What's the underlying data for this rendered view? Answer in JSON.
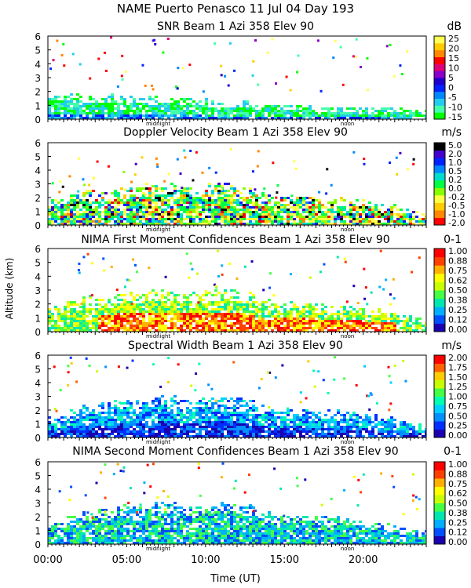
{
  "figure": {
    "title": "NAME Puerto Penasco  11 Jul 04 Day 193",
    "ylabel": "Altitude (km)",
    "xlabel": "Time (UT)",
    "time_ticks": [
      "00:00",
      "05:00",
      "10:00",
      "15:00",
      "20:00"
    ],
    "midnight_label": "midnight",
    "noon_label": "noon"
  },
  "chart_data": [
    {
      "type": "heatmap",
      "title": "SNR Beam 1 Azi 358 Elev 90",
      "units": "dB",
      "x_range_hours": [
        0,
        24
      ],
      "ylim": [
        0,
        6
      ],
      "yticks": [
        "0",
        "1",
        "2",
        "3",
        "4",
        "5",
        "6"
      ],
      "colorbar_labels": [
        "-15",
        "-10",
        "-5",
        "0",
        "5",
        "10",
        "15",
        "20",
        "25"
      ],
      "colors": [
        "#00ff00",
        "#44ffaa",
        "#22ccee",
        "#0088ff",
        "#0022ff",
        "#2000cc",
        "#8800cc",
        "#dd0077",
        "#ff0000",
        "#ff8800",
        "#ffcc00",
        "#ffff55"
      ],
      "layer_top_km": [
        1.8,
        1.8,
        1.7,
        1.7,
        1.6,
        1.6,
        1.6,
        1.6,
        1.5,
        1.4,
        1.3,
        1.3,
        1.2,
        1.1,
        1.0,
        1.0,
        0.9,
        0.8,
        0.8,
        0.8,
        0.8,
        0.8,
        0.7,
        0.6
      ]
    },
    {
      "type": "heatmap",
      "title": "Doppler Velocity Beam 1 Azi 358 Elev 90",
      "units": "m/s",
      "x_range_hours": [
        0,
        24
      ],
      "ylim": [
        0,
        6
      ],
      "yticks": [
        "0",
        "1",
        "2",
        "3",
        "4",
        "5",
        "6"
      ],
      "colorbar_labels": [
        "-2.0",
        "-1.0",
        "-0.5",
        "-0.2",
        "0.0",
        "0.2",
        "0.5",
        "1.0",
        "2.0",
        "5.0"
      ],
      "colors": [
        "#ff0000",
        "#ff8800",
        "#ffcc00",
        "#ffff44",
        "#88ff00",
        "#00ff44",
        "#00ddcc",
        "#0088ff",
        "#0022ff",
        "#4400cc",
        "#000000"
      ],
      "layer_top_km": [
        1.8,
        2.3,
        2.5,
        2.4,
        2.7,
        2.8,
        3.0,
        3.0,
        2.7,
        2.8,
        3.0,
        3.0,
        2.8,
        2.3,
        2.0,
        2.1,
        2.0,
        1.9,
        1.9,
        1.8,
        1.6,
        1.4,
        1.2,
        1.0
      ]
    },
    {
      "type": "heatmap",
      "title": "NIMA First Moment Confidences Beam 1 Azi 358 Elev 90",
      "units": "0-1",
      "x_range_hours": [
        0,
        24
      ],
      "ylim": [
        0,
        6
      ],
      "yticks": [
        "0",
        "1",
        "2",
        "3",
        "4",
        "5",
        "6"
      ],
      "colorbar_labels": [
        "0.00",
        "0.12",
        "0.25",
        "0.38",
        "0.50",
        "0.62",
        "0.75",
        "0.88",
        "1.00"
      ],
      "colors": [
        "#1a00b0",
        "#0050ff",
        "#00b0ff",
        "#00e8b0",
        "#44ff44",
        "#c8ff00",
        "#ffff00",
        "#ffb000",
        "#ff4000",
        "#ff0000"
      ],
      "layer_top_km": [
        1.8,
        2.2,
        2.4,
        2.4,
        2.7,
        2.8,
        3.0,
        3.0,
        2.7,
        2.8,
        3.0,
        3.0,
        2.8,
        2.3,
        2.0,
        2.1,
        2.0,
        1.9,
        1.9,
        1.8,
        1.6,
        1.4,
        1.2,
        1.0
      ]
    },
    {
      "type": "heatmap",
      "title": "Spectral Width Beam 1 Azi 358 Elev 90",
      "units": "m/s",
      "x_range_hours": [
        0,
        24
      ],
      "ylim": [
        0,
        6
      ],
      "yticks": [
        "0",
        "1",
        "2",
        "3",
        "4",
        "5",
        "6"
      ],
      "colorbar_labels": [
        "0.00",
        "0.25",
        "0.50",
        "0.75",
        "1.00",
        "1.25",
        "1.50",
        "1.75",
        "2.00"
      ],
      "colors": [
        "#1a00b0",
        "#0030ff",
        "#0090ff",
        "#00d0ff",
        "#00ffb0",
        "#44ff44",
        "#c8ff00",
        "#ffcc00",
        "#ff6000",
        "#ff0000"
      ],
      "layer_top_km": [
        1.6,
        2.0,
        2.3,
        2.5,
        2.8,
        2.8,
        3.0,
        3.0,
        2.7,
        2.8,
        3.0,
        3.0,
        2.8,
        2.3,
        2.0,
        2.1,
        2.0,
        1.9,
        1.9,
        1.8,
        1.6,
        1.4,
        1.2,
        1.0
      ]
    },
    {
      "type": "heatmap",
      "title": "NIMA Second Moment Confidences Beam 1 Azi 358 Elev 90",
      "units": "0-1",
      "x_range_hours": [
        0,
        24
      ],
      "ylim": [
        0,
        6
      ],
      "yticks": [
        "0",
        "1",
        "2",
        "3",
        "4",
        "5",
        "6"
      ],
      "colorbar_labels": [
        "0.00",
        "0.12",
        "0.25",
        "0.38",
        "0.50",
        "0.62",
        "0.75",
        "0.88",
        "1.00"
      ],
      "colors": [
        "#1a00b0",
        "#0050ff",
        "#00b0ff",
        "#00e8b0",
        "#44ff44",
        "#c8ff00",
        "#ffff00",
        "#ffb000",
        "#ff4000",
        "#ff0000"
      ],
      "layer_top_km": [
        1.6,
        2.0,
        2.3,
        2.5,
        2.8,
        2.8,
        3.0,
        3.0,
        2.7,
        2.8,
        3.0,
        3.0,
        2.8,
        2.3,
        2.0,
        2.1,
        2.0,
        1.9,
        1.9,
        1.8,
        1.6,
        1.4,
        1.2,
        1.0
      ]
    }
  ]
}
